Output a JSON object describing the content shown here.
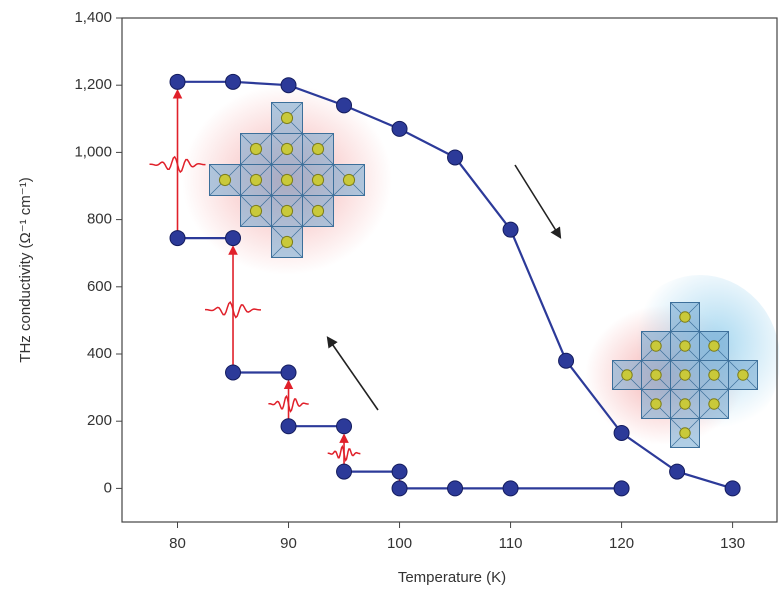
{
  "chart_data": {
    "type": "line",
    "x_label": "Temperature (K)",
    "y_label": "THz conductivity (Ω⁻¹ cm⁻¹)",
    "xlim": [
      75,
      134
    ],
    "ylim": [
      -100,
      1400
    ],
    "xticks": [
      80,
      90,
      100,
      110,
      120,
      130
    ],
    "yticks": [
      0,
      200,
      400,
      600,
      800,
      {
        "value": 1000,
        "label": "1,000"
      },
      {
        "value": 1200,
        "label": "1,200"
      },
      {
        "value": 1400,
        "label": "1,400"
      }
    ],
    "series": [
      {
        "color": "#2c3a99",
        "x": [
          80,
          85,
          90,
          95,
          100,
          105,
          110,
          115,
          120,
          125,
          130
        ],
        "values": [
          1210,
          1210,
          1200,
          1140,
          1070,
          985,
          770,
          380,
          165,
          50,
          0
        ]
      },
      {
        "color": "#2c3a99",
        "x": [
          80,
          85,
          85,
          85,
          90,
          90,
          90,
          95,
          95,
          95,
          100,
          100,
          100,
          105,
          110,
          120
        ],
        "values": [
          745,
          745,
          null,
          345,
          345,
          null,
          185,
          185,
          null,
          50,
          50,
          null,
          0,
          0,
          0,
          0
        ]
      }
    ]
  }
}
